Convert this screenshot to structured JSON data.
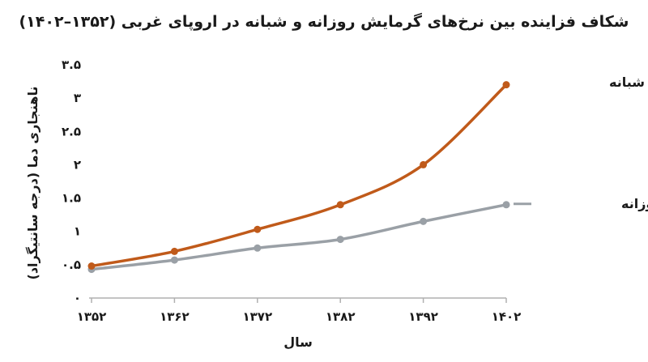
{
  "chart_data": {
    "type": "line",
    "title": "شکاف فزاینده بین نرخ‌های گرمایش روزانه و شبانه در اروپای غربی (۱۳۵۲–۱۴۰۲)",
    "xlabel": "سال",
    "ylabel": "ناهنجاری دما (درجه سانتیگراد)",
    "categories": [
      "۱۳۵۲",
      "۱۳۶۲",
      "۱۳۷۲",
      "۱۳۸۲",
      "۱۳۹۲",
      "۱۴۰۲"
    ],
    "x": [
      1352,
      1362,
      1372,
      1382,
      1392,
      1402
    ],
    "ylim": [
      0,
      3.5
    ],
    "yticks": [
      0,
      0.5,
      1,
      1.5,
      2,
      2.5,
      3,
      3.5
    ],
    "ytick_labels": [
      "۰",
      "۰.۵",
      "۱",
      "۱.۵",
      "۲",
      "۲.۵",
      "۳",
      "۳.۵"
    ],
    "grid": false,
    "series": [
      {
        "name": "گرمایش شبانه",
        "values": [
          0.48,
          0.7,
          1.03,
          1.4,
          2.0,
          3.2
        ],
        "color": "#c05a1a"
      },
      {
        "name": "گرمایش روزانه",
        "values": [
          0.43,
          0.57,
          0.75,
          0.88,
          1.15,
          1.4
        ],
        "color": "#9aa0a6"
      }
    ],
    "axis_color": "#b0b0b0"
  }
}
